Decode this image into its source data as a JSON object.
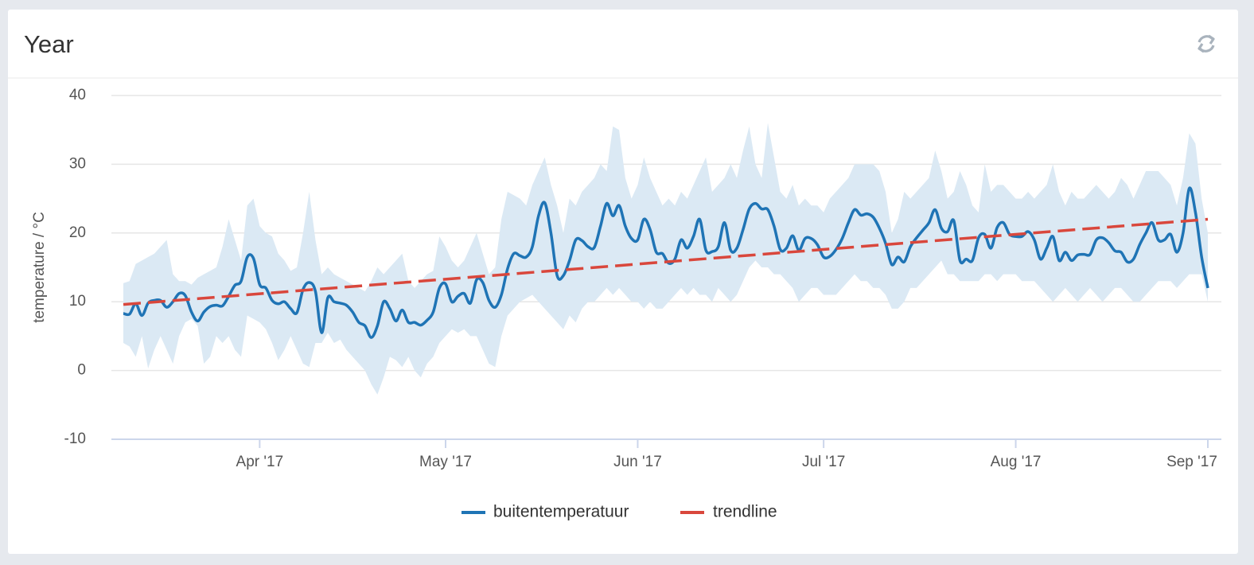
{
  "title": "Year",
  "chart_data": {
    "type": "line",
    "ylabel": "temperature / °C",
    "ylim": [
      -10,
      40
    ],
    "yticks": [
      -10,
      0,
      10,
      20,
      30,
      40
    ],
    "grid": true,
    "legend": "bottom",
    "categories": [
      null,
      null,
      null,
      null,
      null,
      null,
      null,
      null,
      null,
      null,
      null,
      null,
      null,
      null,
      null,
      null,
      null,
      null,
      null,
      null,
      null,
      null,
      "Apr '17",
      null,
      null,
      null,
      null,
      null,
      null,
      null,
      null,
      null,
      null,
      null,
      null,
      null,
      null,
      null,
      null,
      null,
      null,
      null,
      null,
      null,
      null,
      null,
      null,
      null,
      null,
      null,
      null,
      null,
      "May '17",
      null,
      null,
      null,
      null,
      null,
      null,
      null,
      null,
      null,
      null,
      null,
      null,
      null,
      null,
      null,
      null,
      null,
      null,
      null,
      null,
      null,
      null,
      null,
      null,
      null,
      null,
      null,
      null,
      null,
      null,
      "Jun '17",
      null,
      null,
      null,
      null,
      null,
      null,
      null,
      null,
      null,
      null,
      null,
      null,
      null,
      null,
      null,
      null,
      null,
      null,
      null,
      null,
      null,
      null,
      null,
      null,
      null,
      null,
      null,
      null,
      null,
      "Jul '17",
      null,
      null,
      null,
      null,
      null,
      null,
      null,
      null,
      null,
      null,
      null,
      null,
      null,
      null,
      null,
      null,
      null,
      null,
      null,
      null,
      null,
      null,
      null,
      null,
      null,
      null,
      null,
      null,
      null,
      null,
      "Aug '17",
      null,
      null,
      null,
      null,
      null,
      null,
      null,
      null,
      null,
      null,
      null,
      null,
      null,
      null,
      null,
      null,
      null,
      null,
      null,
      null,
      null,
      null,
      null,
      null,
      null,
      null,
      null,
      null,
      null,
      null,
      "Sep '17"
    ],
    "series": [
      {
        "name": "buitentemperatuur",
        "color": "#1f74b5",
        "values": [
          8.3,
          8.2,
          9.7,
          8.0,
          9.8,
          10.2,
          10.2,
          9.2,
          10.0,
          11.2,
          10.9,
          8.5,
          7.2,
          8.5,
          9.3,
          9.5,
          9.4,
          10.8,
          12.4,
          13.0,
          16.5,
          16.3,
          12.5,
          12.0,
          10.2,
          9.7,
          10.0,
          9.0,
          8.4,
          11.8,
          12.8,
          11.5,
          5.5,
          10.6,
          10.0,
          9.8,
          9.5,
          8.5,
          7.0,
          6.5,
          4.8,
          6.5,
          10.0,
          9.0,
          7.2,
          8.8,
          7.0,
          7.0,
          6.6,
          7.3,
          8.5,
          12.0,
          12.6,
          10.0,
          10.8,
          11.2,
          9.8,
          13.2,
          12.8,
          10.2,
          9.2,
          11.0,
          14.8,
          17.0,
          16.7,
          16.5,
          18.0,
          22.5,
          24.4,
          20.0,
          13.8,
          13.8,
          16.0,
          19.0,
          18.9,
          18.0,
          17.9,
          21.0,
          24.3,
          22.5,
          24.0,
          21.0,
          19.2,
          19.0,
          22.0,
          20.5,
          17.2,
          17.0,
          15.6,
          16.2,
          19.0,
          17.8,
          19.5,
          22.0,
          17.5,
          17.3,
          18.0,
          21.5,
          17.5,
          17.8,
          20.5,
          23.5,
          24.3,
          23.5,
          23.4,
          21.0,
          17.6,
          17.8,
          19.6,
          17.5,
          19.2,
          19.2,
          18.3,
          16.5,
          16.6,
          17.6,
          19.2,
          21.5,
          23.4,
          22.6,
          22.8,
          22.3,
          20.7,
          18.5,
          15.4,
          16.5,
          15.8,
          18.0,
          19.3,
          20.4,
          21.5,
          23.4,
          20.7,
          20.2,
          21.8,
          16.0,
          16.2,
          16.0,
          19.3,
          19.8,
          17.8,
          20.8,
          21.5,
          19.8,
          19.5,
          19.5,
          20.2,
          19.0,
          16.2,
          17.8,
          19.5,
          16.0,
          17.2,
          16.0,
          16.8,
          16.9,
          16.9,
          19.0,
          19.3,
          18.6,
          17.4,
          17.2,
          15.8,
          16.2,
          18.3,
          20.0,
          21.5,
          19.0,
          19.0,
          19.8,
          17.2,
          20.0,
          26.5,
          23.0,
          16.5,
          12.0
        ]
      }
    ],
    "trendline": {
      "name": "trendline",
      "color": "#d9473c",
      "values": [
        9.6,
        22.0
      ]
    },
    "band": {
      "color": "#dbe9f4",
      "low": [
        4,
        3.5,
        2,
        5,
        0.3,
        3,
        5,
        3,
        1,
        5,
        7,
        7.5,
        6.5,
        1,
        2,
        5,
        4,
        5,
        3,
        2,
        8,
        7.5,
        7,
        6,
        4,
        1.5,
        3,
        5,
        3,
        1,
        0.5,
        4,
        4,
        5.5,
        4,
        4.5,
        3,
        2,
        1,
        0,
        -2,
        -3.5,
        -1,
        2,
        1.5,
        0.5,
        2,
        0,
        -1,
        1,
        2,
        4,
        5,
        6,
        5.5,
        6,
        5,
        5,
        3,
        1,
        0.5,
        5,
        8,
        9,
        10,
        10.5,
        11,
        10,
        9,
        8,
        7,
        6,
        8,
        7,
        9,
        10,
        10,
        11,
        12,
        11,
        12,
        11,
        10,
        10,
        9,
        10,
        9,
        9,
        10,
        11,
        12,
        11,
        12,
        11,
        11,
        10,
        12,
        11,
        10,
        11,
        13,
        15,
        16,
        15,
        15,
        14,
        14,
        13,
        12,
        10,
        11,
        12,
        12,
        11,
        11,
        11,
        12,
        13,
        14,
        13,
        13,
        12,
        12,
        11,
        9,
        9,
        10,
        12,
        12,
        13,
        14,
        15,
        16,
        14,
        14,
        13,
        13,
        13,
        13,
        14,
        14,
        13,
        14,
        14,
        14,
        13,
        13,
        13,
        12,
        11,
        10,
        11,
        12,
        11,
        10,
        11,
        12,
        11,
        10,
        11,
        12,
        12,
        11,
        10,
        10,
        11,
        12,
        13,
        13,
        13,
        12,
        13,
        14,
        14,
        14,
        10
      ],
      "high": [
        12.7,
        13,
        15.5,
        16,
        16.5,
        17,
        18,
        19,
        14,
        13,
        13,
        12.5,
        13.5,
        14,
        14.5,
        15,
        18,
        22,
        19,
        16,
        24,
        25,
        21,
        20,
        19.5,
        17,
        16,
        14.5,
        15,
        20,
        26,
        19,
        14,
        15,
        14,
        13.5,
        13,
        12.5,
        12,
        11.5,
        13,
        15,
        14,
        15,
        16,
        17,
        13,
        12,
        13,
        14,
        14.5,
        19.5,
        18,
        16,
        15,
        16,
        18,
        20,
        17,
        14,
        15,
        22,
        26,
        25.5,
        25,
        24,
        27,
        29,
        31,
        27,
        24,
        20,
        25,
        24,
        26,
        27,
        28,
        30,
        29,
        35.5,
        35,
        28,
        25,
        27,
        31,
        28,
        26,
        24,
        25,
        24,
        26,
        25,
        27,
        29,
        31,
        26,
        27,
        28,
        30,
        28,
        32,
        35.5,
        30,
        28,
        36,
        31,
        26,
        25,
        27,
        24,
        25,
        24,
        24,
        23,
        25,
        26,
        27,
        28,
        30,
        30,
        30,
        30,
        29,
        26,
        20,
        22,
        26,
        25,
        26,
        27,
        28,
        32,
        29,
        25,
        26,
        29,
        27,
        24,
        23,
        30,
        26,
        27,
        27,
        26,
        25,
        25,
        26,
        25,
        26,
        27,
        30,
        26,
        24,
        26,
        25,
        25,
        26,
        27,
        26,
        25,
        26,
        28,
        27,
        25,
        27,
        29,
        29,
        29,
        28,
        27,
        24,
        28,
        34.5,
        33,
        25,
        20
      ]
    }
  }
}
